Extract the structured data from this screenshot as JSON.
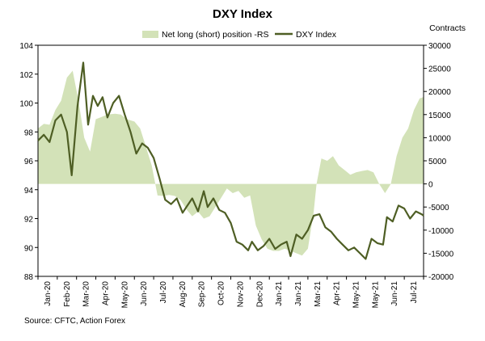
{
  "chart_data": {
    "type": "line",
    "title": "DXY Index",
    "source": "Source: CFTC, Action Forex",
    "right_axis_title": "Contracts",
    "colors": {
      "area": "#d3e2b8",
      "line": "#4e5e24"
    },
    "y_left": {
      "min": 88,
      "max": 104,
      "ticks": [
        "104",
        "102",
        "100",
        "98",
        "96",
        "94",
        "92",
        "90",
        "88"
      ]
    },
    "y_right": {
      "min": -20000,
      "max": 30000,
      "ticks": [
        "30000",
        "25000",
        "20000",
        "15000",
        "10000",
        "5000",
        "0",
        "-5000",
        "-10000",
        "-15000",
        "-20000"
      ]
    },
    "x_tick_labels": [
      "Jan-20",
      "Feb-20",
      "Mar-20",
      "Apr-20",
      "May-20",
      "Jun-20",
      "Jul-20",
      "Aug-20",
      "Sep-20",
      "Oct-20",
      "Nov-20",
      "Dec-20",
      "Jan-21",
      "Jan-21",
      "Mar-21",
      "Apr-21",
      "May-21",
      "May-21",
      "Jun-21",
      "Jul-21"
    ],
    "series": [
      {
        "name": "Net long (short) position -RS",
        "type": "area",
        "axis": "right",
        "x": [
          0,
          0.3,
          0.6,
          0.9,
          1.2,
          1.5,
          1.8,
          2.1,
          2.4,
          2.7,
          3.0,
          3.3,
          3.6,
          4.0,
          4.3,
          4.6,
          5.0,
          5.3,
          5.6,
          5.9,
          6.2,
          6.5,
          6.8,
          7.1,
          7.4,
          7.7,
          8.0,
          8.3,
          8.6,
          8.9,
          9.2,
          9.5,
          9.8,
          10.1,
          10.4,
          10.7,
          11.0,
          11.3,
          11.6,
          11.9,
          12.2,
          12.5,
          12.8,
          13.1,
          13.4,
          13.7,
          14.0,
          14.3,
          14.45,
          14.7,
          15.0,
          15.3,
          15.6,
          15.9,
          16.2,
          16.5,
          16.8,
          17.1,
          17.4,
          17.7,
          18.0,
          18.3,
          18.6,
          18.9,
          19.2,
          19.5,
          19.8,
          20.0
        ],
        "values": [
          12000,
          13000,
          12800,
          16000,
          18000,
          23000,
          24500,
          18000,
          10000,
          7000,
          14000,
          14500,
          15000,
          15200,
          15000,
          14000,
          13500,
          12000,
          8000,
          4000,
          -2500,
          -2600,
          -2400,
          -2600,
          -3500,
          -5500,
          -7000,
          -6000,
          -7500,
          -7000,
          -5000,
          -3000,
          -1000,
          -2000,
          -1500,
          -3000,
          -2500,
          -9000,
          -12000,
          -14000,
          -14500,
          -14500,
          -14000,
          -14500,
          -15000,
          -15500,
          -14000,
          -6000,
          0,
          5500,
          5000,
          6000,
          4000,
          3000,
          2000,
          2500,
          2800,
          3000,
          2500,
          0,
          -2000,
          0,
          6000,
          10000,
          12000,
          16000,
          18500,
          18800
        ]
      },
      {
        "name": "DXY Index",
        "type": "line",
        "axis": "left",
        "x": [
          0,
          0.3,
          0.6,
          0.9,
          1.2,
          1.5,
          1.75,
          2.05,
          2.35,
          2.6,
          2.85,
          3.1,
          3.35,
          3.6,
          3.9,
          4.2,
          4.5,
          4.8,
          5.1,
          5.4,
          5.7,
          6.0,
          6.3,
          6.6,
          6.9,
          7.2,
          7.5,
          7.8,
          8.0,
          8.3,
          8.6,
          8.8,
          9.1,
          9.4,
          9.7,
          10.0,
          10.3,
          10.6,
          10.9,
          11.1,
          11.4,
          11.7,
          12.0,
          12.3,
          12.6,
          12.9,
          13.1,
          13.4,
          13.7,
          14.0,
          14.3,
          14.6,
          14.9,
          15.2,
          15.5,
          15.8,
          16.1,
          16.4,
          16.7,
          17.0,
          17.3,
          17.6,
          17.9,
          18.1,
          18.4,
          18.7,
          19.0,
          19.3,
          19.6,
          19.9,
          20.0
        ],
        "values": [
          97.4,
          97.8,
          97.3,
          98.8,
          99.2,
          98.0,
          95.0,
          99.8,
          102.8,
          98.5,
          100.5,
          99.8,
          100.4,
          99.0,
          100.0,
          100.5,
          99.2,
          98.0,
          96.5,
          97.2,
          96.9,
          96.2,
          94.8,
          93.3,
          93.0,
          93.4,
          92.4,
          93.0,
          93.4,
          92.5,
          93.9,
          92.8,
          93.4,
          92.6,
          92.4,
          91.7,
          90.4,
          90.2,
          89.8,
          90.4,
          89.8,
          90.1,
          90.6,
          89.9,
          90.2,
          90.4,
          89.4,
          90.9,
          90.6,
          91.2,
          92.2,
          92.3,
          91.4,
          91.1,
          90.6,
          90.2,
          89.8,
          90.0,
          89.6,
          89.2,
          90.6,
          90.3,
          90.2,
          92.1,
          91.8,
          92.9,
          92.7,
          92.0,
          92.5,
          92.3,
          92.2
        ]
      }
    ]
  }
}
